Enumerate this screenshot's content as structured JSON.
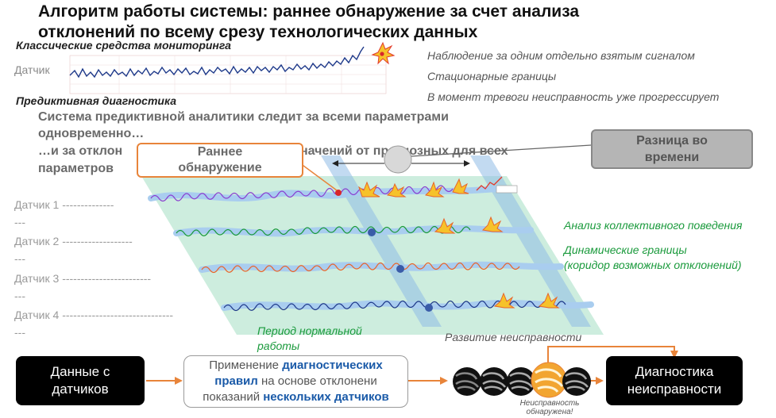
{
  "title_line1": "Алгоритм работы системы: раннее обнаружение за счет анализа",
  "title_line2": "отклонений по всему срезу технологических данных",
  "classic": {
    "heading": "Классические средства мониторинга",
    "sensor_label": "Датчик",
    "notes": [
      "Наблюдение за одним отдельно взятым сигналом",
      "Стационарные границы",
      "В момент тревоги неисправность уже прогрессирует"
    ]
  },
  "predictive": {
    "heading": "Предиктивная диагностика",
    "desc_line1": "Система предиктивной аналитики следит за всеми параметрами",
    "desc_line2": "одновременно…",
    "desc_line3": "…и за отклон",
    "desc_line3b": "начений от прогнозных для всех",
    "desc_line4": "параметров"
  },
  "early_detection": {
    "line1": "Раннее",
    "line2": "обнаружение"
  },
  "time_difference": {
    "line1": "Разница во",
    "line2": "времени"
  },
  "sensors": [
    {
      "label": "Датчик 1",
      "dashes": "--------------",
      "tail": "---"
    },
    {
      "label": "Датчик 2",
      "dashes": "-------------------",
      "tail": "---"
    },
    {
      "label": "Датчик 3",
      "dashes": "------------------------",
      "tail": "---"
    },
    {
      "label": "Датчик 4",
      "dashes": "------------------------------",
      "tail": "---"
    }
  ],
  "right_notes": {
    "collective": "Анализ коллективного поведения",
    "dyn_line1": "Динамические границы",
    "dyn_line2": "(коридор возможных отклонений)"
  },
  "normal_period": {
    "line1": "Период нормальной",
    "line2": "работы"
  },
  "fault_development": "Развитие неисправности",
  "flow": {
    "data_box": {
      "line1": "Данные с",
      "line2": "датчиков"
    },
    "rules_box": {
      "l1a": "Применение ",
      "l1b": "диагностических",
      "l2a": "правил",
      "l2b": " на основе отклонени",
      "l3a": "показаний ",
      "l3b": "нескольких датчиков"
    },
    "diag_box": {
      "line1": "Диагностика",
      "line2": "неисправности"
    },
    "fault_found_line1": "Неисправность",
    "fault_found_line2": "обнаружена!"
  },
  "colors": {
    "accent_orange": "#e8843a",
    "green": "#1a9a3c",
    "blue": "#1a5aa8",
    "band_green": "#bfe8d4",
    "band_blue": "#9ec4e8"
  }
}
